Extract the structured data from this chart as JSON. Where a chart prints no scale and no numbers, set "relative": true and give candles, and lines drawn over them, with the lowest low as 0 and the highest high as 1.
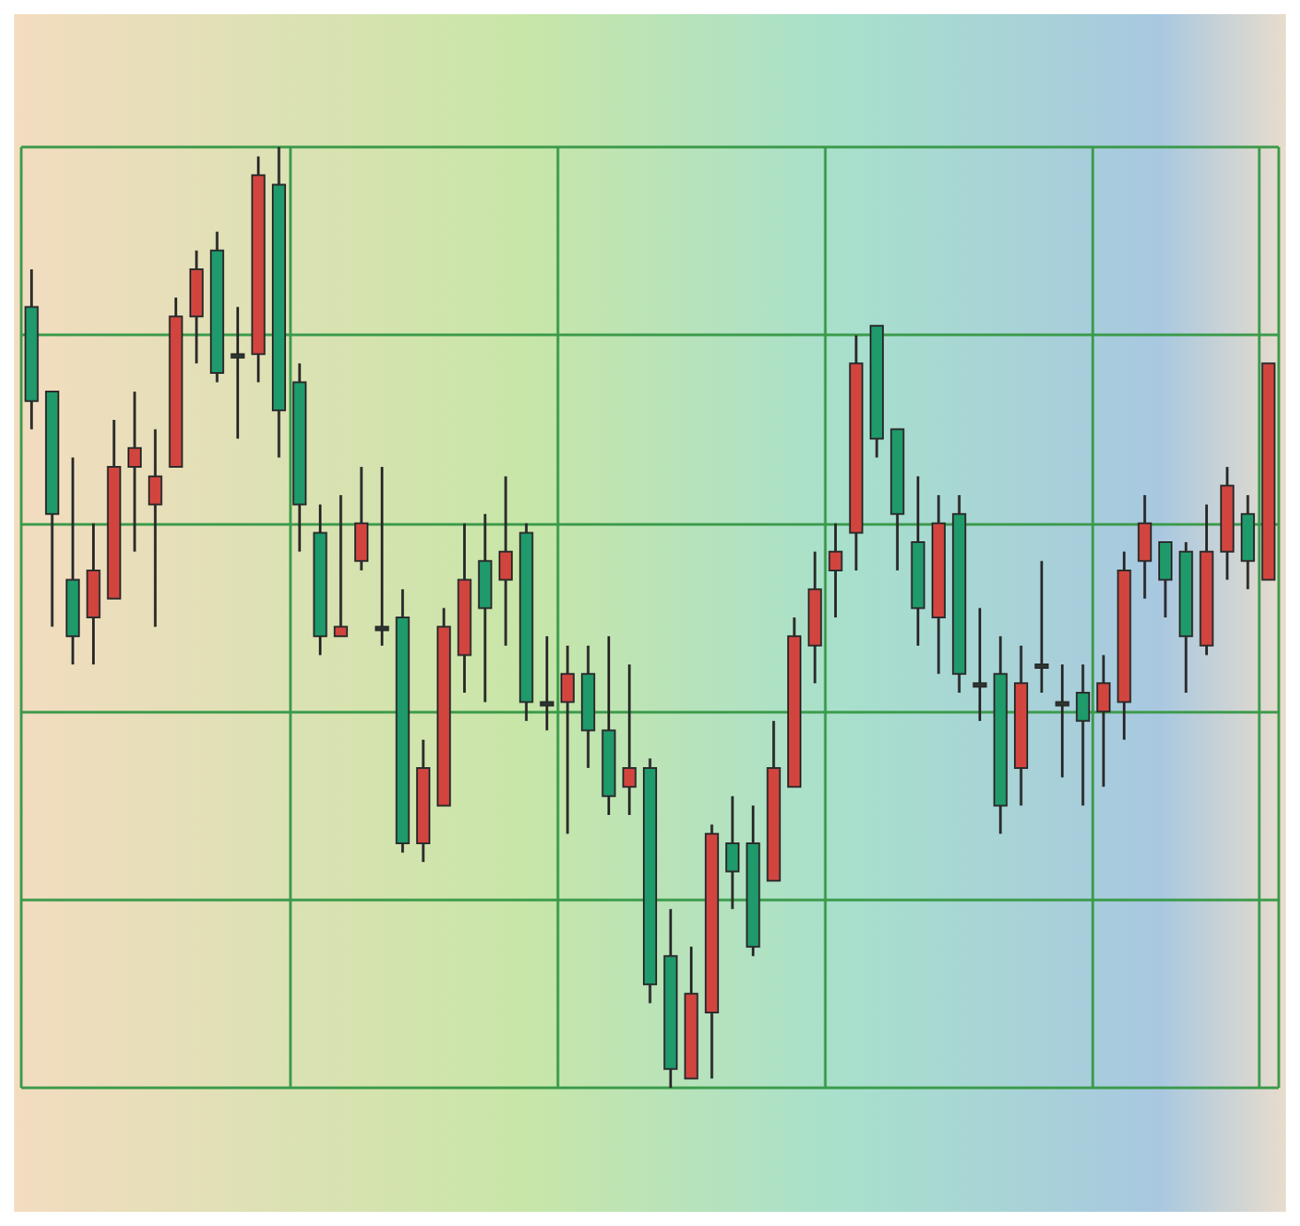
{
  "chart_data": {
    "type": "candlestick",
    "relative": true,
    "grid": true,
    "colors": [
      "#1f9a6b",
      "#1f9a6b",
      "#1f9a6b",
      "#d2453f",
      "#d2453f",
      "#d2453f",
      "#d2453f",
      "#d2453f",
      "#d2453f",
      "#1f9a6b",
      "#2b3b33",
      "#d2453f",
      "#1f9a6b",
      "#1f9a6b",
      "#1f9a6b",
      "#d2453f",
      "#d2453f",
      "#2b3b33",
      "#1f9a6b",
      "#d2453f",
      "#d2453f",
      "#d2453f",
      "#1f9a6b",
      "#d2453f",
      "#1f9a6b",
      "#2b3b33",
      "#d2453f",
      "#1f9a6b",
      "#1f9a6b",
      "#d2453f",
      "#1f9a6b",
      "#1f9a6b",
      "#d2453f",
      "#d2453f",
      "#1f9a6b",
      "#1f9a6b",
      "#d2453f",
      "#d2453f",
      "#d2453f",
      "#d2453f",
      "#d2453f",
      "#1f9a6b",
      "#1f9a6b",
      "#1f9a6b",
      "#d2453f",
      "#1f9a6b",
      "#2b3b33",
      "#1f9a6b",
      "#d2453f",
      "#2b3b33",
      "#2b3b33",
      "#1f9a6b",
      "#d2453f",
      "#d2453f",
      "#d2453f",
      "#1f9a6b",
      "#1f9a6b",
      "#d2453f",
      "#d2453f",
      "#1f9a6b",
      "#d2453f"
    ],
    "categories": [
      null,
      null,
      null,
      null,
      null,
      null,
      null,
      null,
      null,
      null,
      null,
      null,
      null,
      null,
      null,
      null,
      null,
      null,
      null,
      null,
      null,
      null,
      null,
      null,
      null,
      null,
      null,
      null,
      null,
      null,
      null,
      null,
      null,
      null,
      null,
      null,
      null,
      null,
      null,
      null,
      null,
      null,
      null,
      null,
      null,
      null,
      null,
      null,
      null,
      null,
      null,
      null,
      null,
      null,
      null,
      null,
      null,
      null,
      null,
      null,
      null
    ],
    "ohlc": [
      [
        0.83,
        0.87,
        0.7,
        0.73
      ],
      [
        0.74,
        0.74,
        0.49,
        0.61
      ],
      [
        0.54,
        0.67,
        0.45,
        0.48
      ],
      [
        0.5,
        0.6,
        0.45,
        0.55
      ],
      [
        0.52,
        0.71,
        0.52,
        0.66
      ],
      [
        0.66,
        0.74,
        0.57,
        0.68
      ],
      [
        0.62,
        0.7,
        0.49,
        0.65
      ],
      [
        0.66,
        0.84,
        0.66,
        0.82
      ],
      [
        0.82,
        0.89,
        0.77,
        0.87
      ],
      [
        0.89,
        0.91,
        0.75,
        0.76
      ],
      [
        0.78,
        0.83,
        0.69,
        0.78
      ],
      [
        0.78,
        0.99,
        0.75,
        0.97
      ],
      [
        0.96,
        1,
        0.67,
        0.72
      ],
      [
        0.75,
        0.77,
        0.57,
        0.62
      ],
      [
        0.59,
        0.62,
        0.46,
        0.48
      ],
      [
        0.48,
        0.63,
        0.48,
        0.49
      ],
      [
        0.56,
        0.66,
        0.55,
        0.6
      ],
      [
        0.49,
        0.66,
        0.47,
        0.49
      ],
      [
        0.5,
        0.53,
        0.25,
        0.26
      ],
      [
        0.26,
        0.37,
        0.24,
        0.34
      ],
      [
        0.3,
        0.51,
        0.3,
        0.49
      ],
      [
        0.46,
        0.6,
        0.42,
        0.54
      ],
      [
        0.56,
        0.61,
        0.41,
        0.51
      ],
      [
        0.54,
        0.65,
        0.47,
        0.57
      ],
      [
        0.59,
        0.6,
        0.39,
        0.41
      ],
      [
        0.41,
        0.48,
        0.38,
        0.41
      ],
      [
        0.41,
        0.47,
        0.27,
        0.44
      ],
      [
        0.44,
        0.47,
        0.34,
        0.38
      ],
      [
        0.38,
        0.48,
        0.29,
        0.31
      ],
      [
        0.32,
        0.45,
        0.29,
        0.34
      ],
      [
        0.34,
        0.35,
        0.09,
        0.11
      ],
      [
        0.14,
        0.19,
        0,
        0.02
      ],
      [
        0.01,
        0.15,
        0.01,
        0.1
      ],
      [
        0.08,
        0.28,
        0.01,
        0.27
      ],
      [
        0.26,
        0.31,
        0.19,
        0.23
      ],
      [
        0.26,
        0.3,
        0.14,
        0.15
      ],
      [
        0.22,
        0.39,
        0.22,
        0.34
      ],
      [
        0.32,
        0.5,
        0.32,
        0.48
      ],
      [
        0.47,
        0.57,
        0.43,
        0.53
      ],
      [
        0.55,
        0.6,
        0.5,
        0.57
      ],
      [
        0.59,
        0.8,
        0.55,
        0.77
      ],
      [
        0.81,
        0.81,
        0.67,
        0.69
      ],
      [
        0.7,
        0.7,
        0.55,
        0.61
      ],
      [
        0.58,
        0.65,
        0.47,
        0.51
      ],
      [
        0.5,
        0.63,
        0.44,
        0.6
      ],
      [
        0.61,
        0.63,
        0.42,
        0.44
      ],
      [
        0.43,
        0.51,
        0.39,
        0.43
      ],
      [
        0.44,
        0.48,
        0.27,
        0.3
      ],
      [
        0.34,
        0.47,
        0.3,
        0.43
      ],
      [
        0.45,
        0.56,
        0.42,
        0.45
      ],
      [
        0.41,
        0.45,
        0.33,
        0.41
      ],
      [
        0.42,
        0.45,
        0.3,
        0.39
      ],
      [
        0.4,
        0.46,
        0.32,
        0.43
      ],
      [
        0.41,
        0.57,
        0.37,
        0.55
      ],
      [
        0.56,
        0.63,
        0.52,
        0.6
      ],
      [
        0.58,
        0.58,
        0.5,
        0.54
      ],
      [
        0.57,
        0.58,
        0.42,
        0.48
      ],
      [
        0.47,
        0.62,
        0.46,
        0.57
      ],
      [
        0.57,
        0.66,
        0.54,
        0.64
      ],
      [
        0.61,
        0.63,
        0.53,
        0.56
      ],
      [
        0.54,
        0.77,
        0.54,
        0.77
      ]
    ]
  }
}
